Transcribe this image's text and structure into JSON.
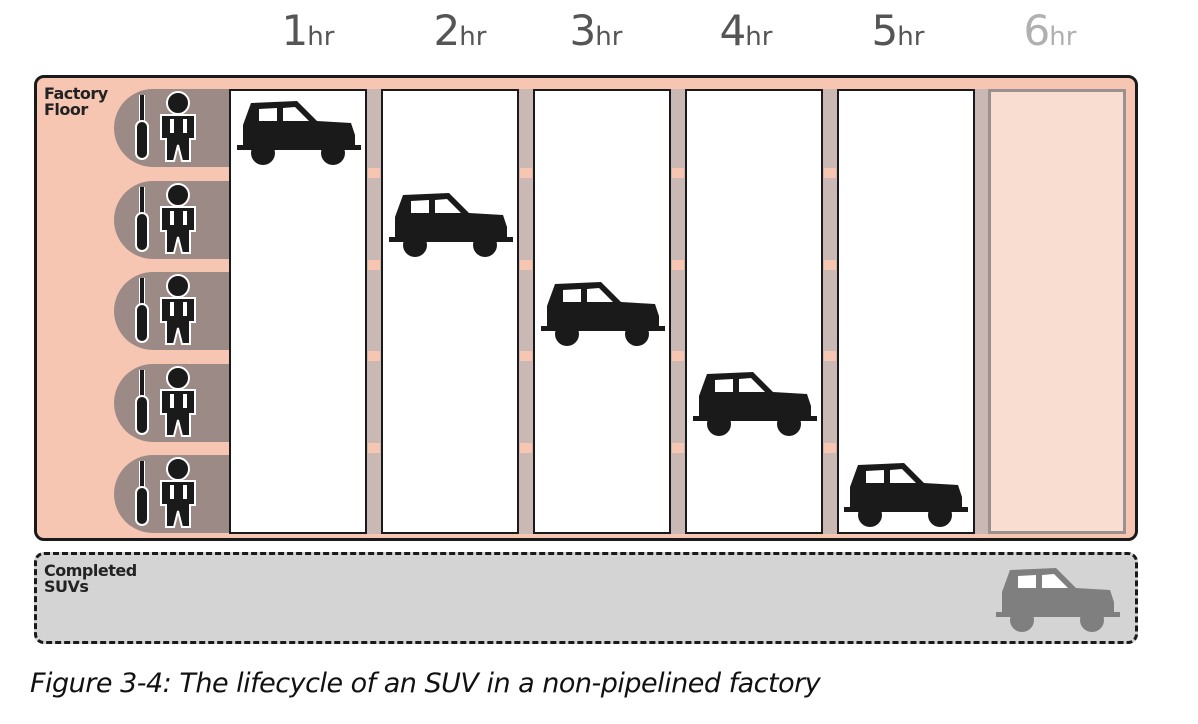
{
  "hours": [
    {
      "num": "1",
      "unit": "hr"
    },
    {
      "num": "2",
      "unit": "hr"
    },
    {
      "num": "3",
      "unit": "hr"
    },
    {
      "num": "4",
      "unit": "hr"
    },
    {
      "num": "5",
      "unit": "hr"
    },
    {
      "num": "6",
      "unit": "hr"
    }
  ],
  "factory": {
    "label_line1": "Factory",
    "label_line2": "Floor"
  },
  "completed": {
    "label_line1": "Completed",
    "label_line2": "SUVs"
  },
  "caption": "Figure 3-4: The lifecycle of an SUV in a non-pipelined factory",
  "colors": {
    "floor": "#f7c6b2",
    "station": "#9b8a86",
    "vehicle": "#1a1a1a",
    "completed_vehicle": "#7f7f7f",
    "completed_area": "#d4d4d4"
  },
  "icons": [
    "worker-icon",
    "screwdriver-icon",
    "suv-icon"
  ]
}
